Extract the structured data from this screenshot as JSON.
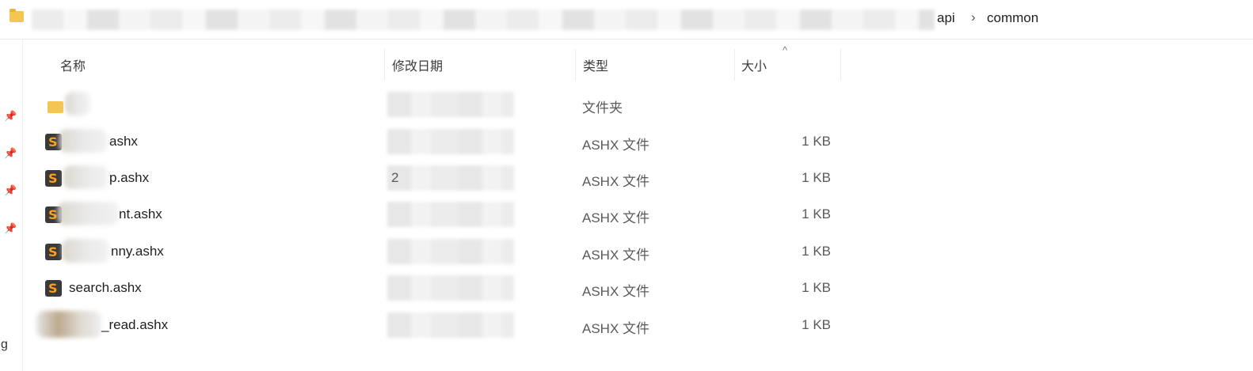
{
  "address_bar": {
    "crumbs": [
      "api",
      "common"
    ],
    "separator": "›"
  },
  "nav": {
    "partial_label": "g"
  },
  "columns": {
    "name": "名称",
    "date": "修改日期",
    "type": "类型",
    "size": "大小",
    "sort_indicator": "^"
  },
  "rows": [
    {
      "name": "",
      "type": "文件夹",
      "size": "",
      "date_visible": ""
    },
    {
      "name": "ashx",
      "type": "ASHX 文件",
      "size": "1 KB",
      "date_visible": ""
    },
    {
      "name": "p.ashx",
      "type": "ASHX 文件",
      "size": "1 KB",
      "date_visible": "2"
    },
    {
      "name": "nt.ashx",
      "type": "ASHX 文件",
      "size": "1 KB",
      "date_visible": ""
    },
    {
      "name": "nny.ashx",
      "type": "ASHX 文件",
      "size": "1 KB",
      "date_visible": ""
    },
    {
      "name": "search.ashx",
      "type": "ASHX 文件",
      "size": "1 KB",
      "date_visible": ""
    },
    {
      "name": "_read.ashx",
      "type": "ASHX 文件",
      "size": "1 KB",
      "date_visible": ""
    }
  ],
  "colors": {
    "folder": "#f4c552",
    "sublime_icon_bg": "#3a3a3a",
    "sublime_icon_fg": "#ff9e1b"
  }
}
